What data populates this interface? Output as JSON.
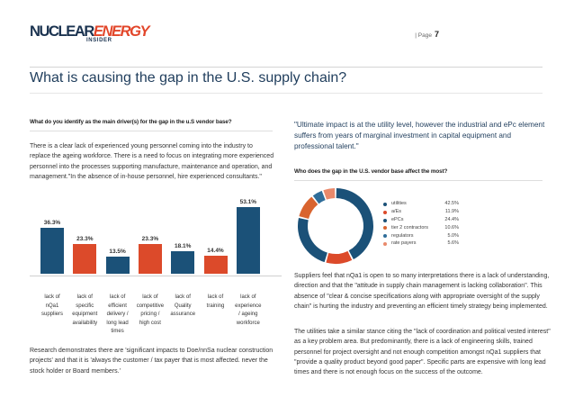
{
  "header": {
    "logo_word_1": "NUCLEAR",
    "logo_word_2": "ENERGY",
    "logo_sub": "INSIDER",
    "page_label": "| Page",
    "page_number": "7"
  },
  "title": "What is causing the gap in the U.S. supply chain?",
  "left": {
    "question": "What do you identify as the main driver(s) for the gap in the u.S vendor base?",
    "paragraph": "There is a clear lack of experienced young personnel coming into the industry to replace the ageing workforce. There is a need to focus on integrating more experienced personnel into the processes supporting manufacture, maintenance and operation, and management.\"In the absence of in-house personnel, hire experienced consultants.\"",
    "closing": "Research demonstrates there are 'significant impacts to Doe/nnSa nuclear construction projects' and that it is 'always the customer / tax payer that is most affected. never the stock holder or Board members.'"
  },
  "chart_data": [
    {
      "type": "bar",
      "title": "",
      "categories": [
        "lack of nQa1 suppliers",
        "lack of specific equipment availability",
        "lack of efficient delivery / long lead times",
        "lack of competitive pricing / high cost",
        "lack of Quality assurance",
        "lack of training",
        "lack of experience / ageing workforce"
      ],
      "category_lines": [
        [
          "lack of",
          "nQa1",
          "suppliers"
        ],
        [
          "lack of",
          "specific",
          "equipment",
          "availability"
        ],
        [
          "lack of",
          "efficient",
          "delivery /",
          "long lead",
          "times"
        ],
        [
          "lack of",
          "competitive",
          "pricing /",
          "high cost"
        ],
        [
          "lack of",
          "Quality",
          "assurance"
        ],
        [
          "lack of",
          "training"
        ],
        [
          "lack of",
          "experience",
          "/ ageing",
          "workforce"
        ]
      ],
      "values": [
        36.3,
        23.3,
        13.5,
        23.3,
        18.1,
        14.4,
        53.1
      ],
      "value_labels": [
        "36.3%",
        "23.3%",
        "13.5%",
        "23.3%",
        "18.1%",
        "14.4%",
        "53.1%"
      ],
      "colors": [
        "#1b5178",
        "#dc4a2a",
        "#1b5178",
        "#dc4a2a",
        "#1b5178",
        "#dc4a2a",
        "#1b5178"
      ],
      "ylim": [
        0,
        60
      ],
      "xlabel": "",
      "ylabel": ""
    },
    {
      "type": "pie",
      "title": "Who does the gap in the U.S. vendor base affect the most?",
      "donut": true,
      "categories": [
        "utilities",
        "a/Es",
        "ePCs",
        "tier 2 contractors",
        "regulators",
        "rate payers"
      ],
      "values": [
        42.5,
        11.9,
        24.4,
        10.6,
        5.0,
        5.6
      ],
      "value_labels": [
        "42.5%",
        "11.9%",
        "24.4%",
        "10.6%",
        "5.0%",
        "5.6%"
      ],
      "colors": [
        "#1b5178",
        "#dc4a2a",
        "#1b5178",
        "#d9642f",
        "#2f6d99",
        "#e9896b"
      ]
    }
  ],
  "right": {
    "quote": "\"Ultimate impact is at the utility level, however the industrial and ePc element suffers from years of marginal investment in capital equipment and professional talent.\"",
    "question": "Who does the gap in the U.S. vendor base affect the most?",
    "paragraph_1": "Suppliers feel that nQa1 is open to so many interpretations there is a lack of understanding, direction and that the \"attitude in supply chain management is lacking collaboration\". This absence of \"clear & concise specifications along with appropriate oversight of the supply chain\" is hurting the industry and preventing an efficient timely strategy being implemented.",
    "paragraph_2": "The utilities take a similar stance citing the \"lack of coordination and political vested interest\" as a key problem area. But predominantly, there is a lack of engineering skills, trained personnel for project oversight and not enough competition amongst nQa1 suppliers that \"provide a quality product beyond good paper\". Specific parts are expensive with long lead times and there is not enough focus on the success of the outcome."
  }
}
